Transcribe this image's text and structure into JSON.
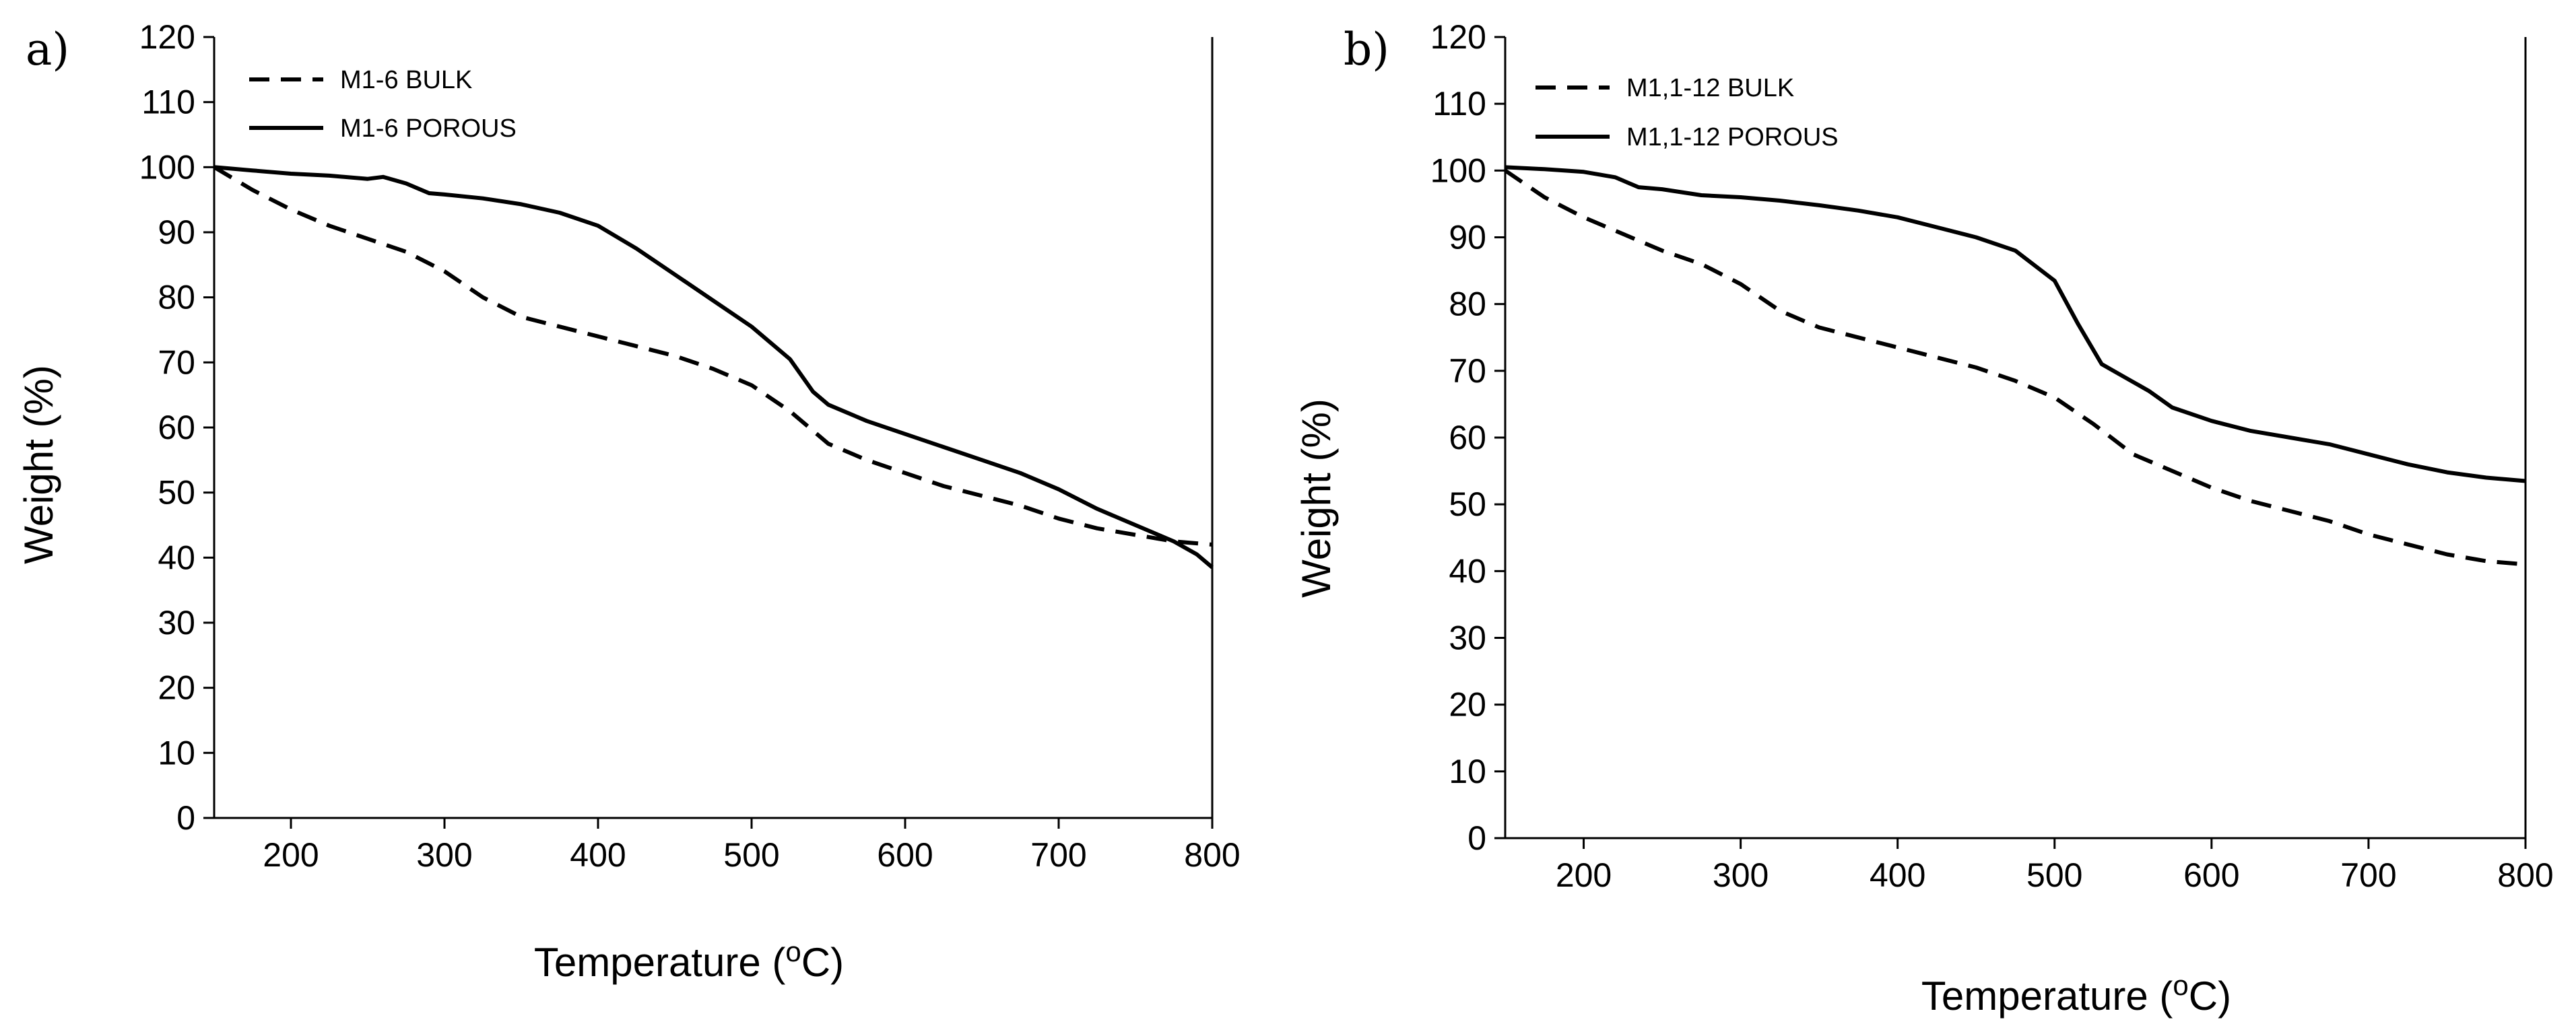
{
  "chart_data": [
    {
      "type": "line",
      "panel_label": "a)",
      "title": "",
      "xlabel": "Temperature (",
      "xlabel_super": "o",
      "xlabel_unit": "C)",
      "ylabel": "Weight (%)",
      "xlim": [
        150,
        800
      ],
      "ylim": [
        0,
        120
      ],
      "x_ticks": [
        200,
        300,
        400,
        500,
        600,
        700,
        800
      ],
      "y_ticks": [
        0,
        10,
        20,
        30,
        40,
        50,
        60,
        70,
        80,
        90,
        100,
        110,
        120
      ],
      "grid": false,
      "legend_position": "top-left",
      "series": [
        {
          "name": "M1-6 BULK",
          "style": "dashed",
          "x": [
            150,
            175,
            200,
            225,
            250,
            275,
            300,
            325,
            350,
            375,
            400,
            425,
            450,
            475,
            500,
            525,
            550,
            575,
            600,
            625,
            650,
            675,
            700,
            725,
            750,
            775,
            800
          ],
          "y": [
            100,
            96.5,
            93.5,
            91,
            89,
            87,
            84,
            80,
            77,
            75.5,
            74,
            72.5,
            71,
            69,
            66.5,
            62.5,
            57.5,
            55,
            53,
            51,
            49.5,
            48,
            46,
            44.5,
            43.5,
            42.5,
            42
          ]
        },
        {
          "name": "M1-6 POROUS",
          "style": "solid",
          "x": [
            150,
            175,
            200,
            225,
            250,
            260,
            275,
            290,
            300,
            325,
            350,
            375,
            400,
            425,
            450,
            475,
            500,
            525,
            540,
            550,
            575,
            600,
            625,
            650,
            675,
            700,
            725,
            750,
            775,
            790,
            800
          ],
          "y": [
            100,
            99.5,
            99,
            98.7,
            98.2,
            98.5,
            97.5,
            96,
            95.8,
            95.2,
            94.3,
            93,
            91,
            87.5,
            83.5,
            79.5,
            75.5,
            70.5,
            65.5,
            63.5,
            61,
            59,
            57,
            55,
            53,
            50.5,
            47.5,
            45,
            42.5,
            40.5,
            38.5
          ]
        }
      ]
    },
    {
      "type": "line",
      "panel_label": "b)",
      "title": "",
      "xlabel": "Temperature (",
      "xlabel_super": "o",
      "xlabel_unit": "C)",
      "ylabel": "Weight (%)",
      "xlim": [
        150,
        800
      ],
      "ylim": [
        0,
        120
      ],
      "x_ticks": [
        200,
        300,
        400,
        500,
        600,
        700,
        800
      ],
      "y_ticks": [
        0,
        10,
        20,
        30,
        40,
        50,
        60,
        70,
        80,
        90,
        100,
        110,
        120
      ],
      "grid": false,
      "legend_position": "top-left",
      "series": [
        {
          "name": "M1,1-12 BULK",
          "style": "dashed",
          "x": [
            150,
            175,
            200,
            225,
            250,
            275,
            300,
            325,
            350,
            375,
            400,
            425,
            450,
            475,
            500,
            525,
            550,
            575,
            600,
            625,
            650,
            675,
            700,
            725,
            750,
            775,
            800
          ],
          "y": [
            100,
            96,
            93,
            90.5,
            88,
            86,
            83,
            79,
            76.5,
            75,
            73.5,
            72,
            70.5,
            68.5,
            66,
            62,
            57.5,
            55,
            52.5,
            50.5,
            49,
            47.5,
            45.5,
            44,
            42.5,
            41.5,
            41
          ]
        },
        {
          "name": "M1,1-12 POROUS",
          "style": "solid",
          "x": [
            150,
            175,
            200,
            220,
            235,
            250,
            275,
            300,
            325,
            350,
            375,
            400,
            425,
            450,
            475,
            500,
            515,
            530,
            545,
            560,
            575,
            600,
            625,
            650,
            675,
            700,
            725,
            750,
            775,
            800
          ],
          "y": [
            100.5,
            100.2,
            99.8,
            99,
            97.5,
            97.2,
            96.3,
            96,
            95.5,
            94.8,
            94,
            93,
            91.5,
            90,
            88,
            83.5,
            77,
            71,
            69,
            67,
            64.5,
            62.5,
            61,
            60,
            59,
            57.5,
            56,
            54.8,
            54,
            53.5
          ]
        }
      ]
    }
  ]
}
